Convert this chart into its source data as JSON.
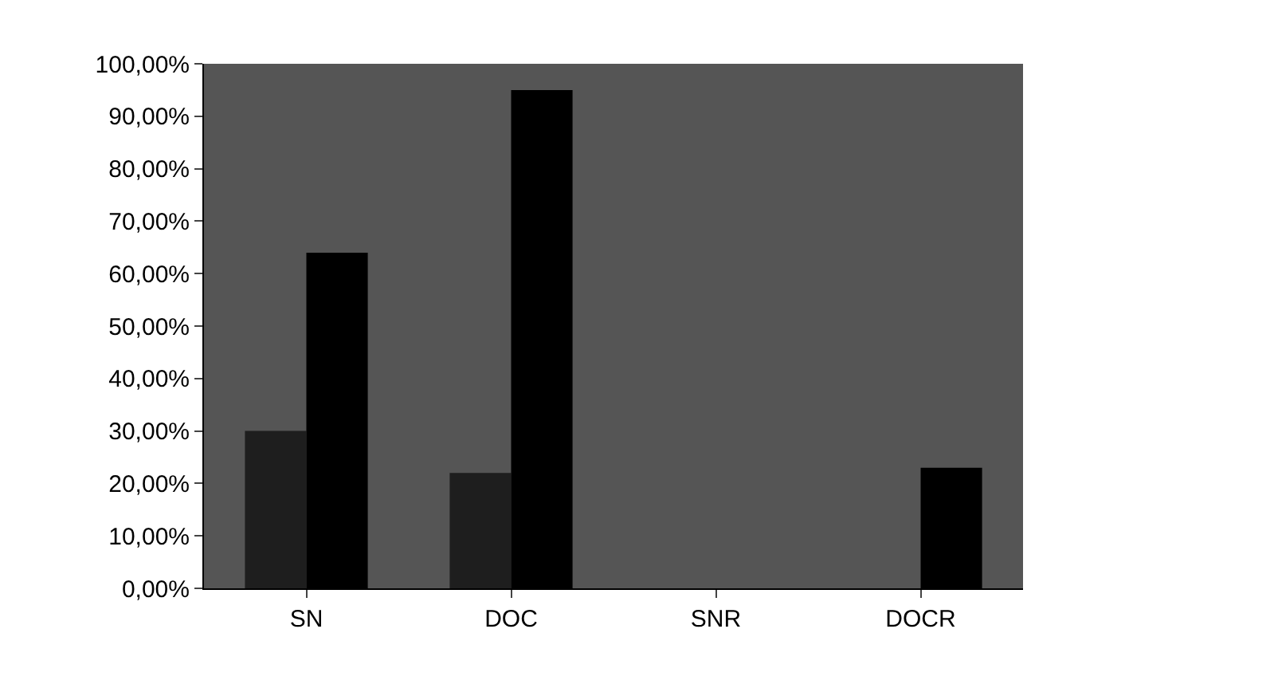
{
  "chart_data": {
    "type": "bar",
    "categories": [
      "SN",
      "DOC",
      "SNR",
      "DOCR"
    ],
    "series": [
      {
        "color": "#1e1e1e",
        "values": [
          30,
          22,
          0,
          0
        ]
      },
      {
        "color": "#000000",
        "values": [
          64,
          95,
          0,
          23
        ]
      }
    ],
    "ylim": [
      0,
      100
    ],
    "yticks": [
      {
        "value": 0,
        "label": "0,00%"
      },
      {
        "value": 10,
        "label": "10,00%"
      },
      {
        "value": 20,
        "label": "20,00%"
      },
      {
        "value": 30,
        "label": "30,00%"
      },
      {
        "value": 40,
        "label": "40,00%"
      },
      {
        "value": 50,
        "label": "50,00%"
      },
      {
        "value": 60,
        "label": "60,00%"
      },
      {
        "value": 70,
        "label": "70,00%"
      },
      {
        "value": 80,
        "label": "80,00%"
      },
      {
        "value": 90,
        "label": "90,00%"
      },
      {
        "value": 100,
        "label": "100,00%"
      }
    ],
    "grid": false
  }
}
